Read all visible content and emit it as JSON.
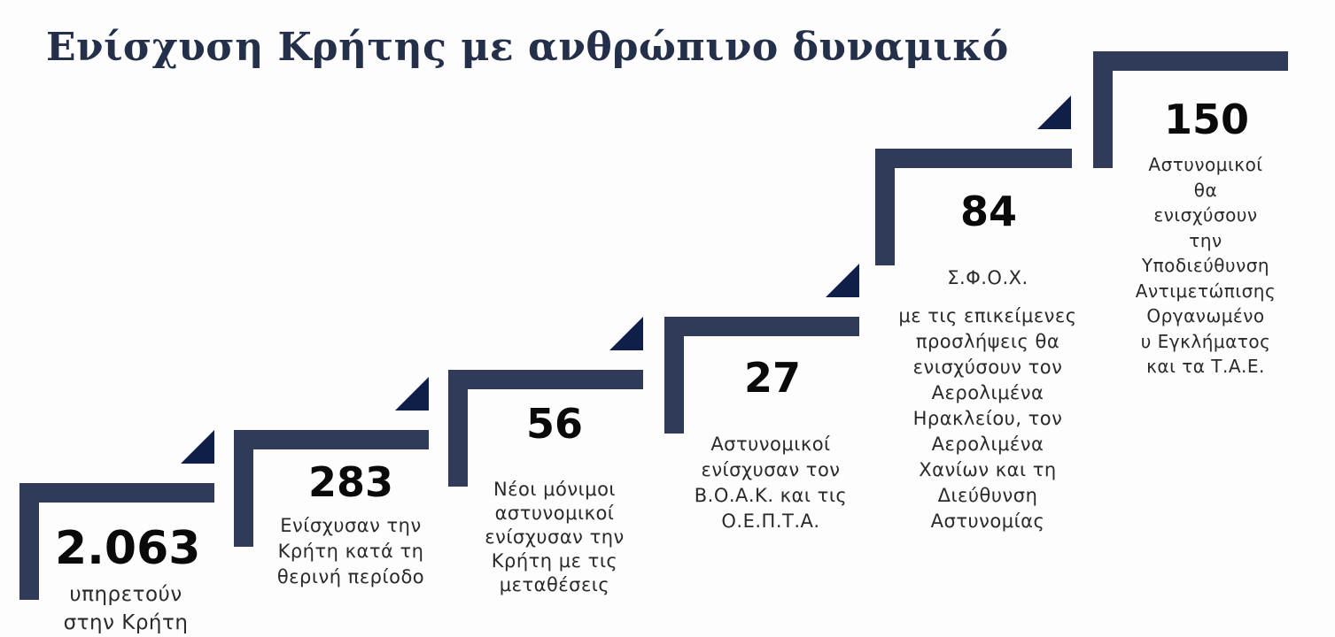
{
  "title": "Ενίσχυση Κρήτης με ανθρώπινο δυναμικό",
  "steps": [
    {
      "value": "2.063",
      "lines": [
        "υπηρετούν",
        "στην Κρήτη"
      ]
    },
    {
      "value": "283",
      "lines": [
        "Ενίσχυσαν την",
        "Κρήτη κατά τη",
        "θερινή περίοδο"
      ]
    },
    {
      "value": "56",
      "lines": [
        "Νέοι μόνιμοι",
        "αστυνομικοί",
        "ενίσχυσαν την",
        "Κρήτη με τις",
        "μεταθέσεις"
      ]
    },
    {
      "value": "27",
      "lines": [
        "Αστυνομικοί",
        "ενίσχυσαν τον",
        "Β.Ο.Α.Κ. και τις",
        "Ο.Ε.Π.Τ.Α."
      ]
    },
    {
      "value": "84",
      "lines": [
        "Σ.Φ.Ο.Χ.",
        "",
        "με τις επικείμενες",
        "προσλήψεις  θα",
        "ενισχύσουν τον",
        "Αερολιμένα",
        "Ηρακλείου, τον",
        "Αερολιμένα",
        "Χανίων και τη",
        "Διεύθυνση",
        "Αστυνομίας"
      ]
    },
    {
      "value": "150",
      "lines": [
        "Αστυνομικοί",
        "θα",
        "ενισχύσουν",
        "την",
        "Υποδιεύθυνση",
        "Αντιμετώπισης",
        "Οργανωμένο",
        "υ Εγκλήματος",
        "και τα Τ.Α.Ε."
      ]
    }
  ],
  "colors": {
    "bar": "#2f3b57",
    "triangle": "#0f1f4a",
    "title": "#24304a"
  }
}
